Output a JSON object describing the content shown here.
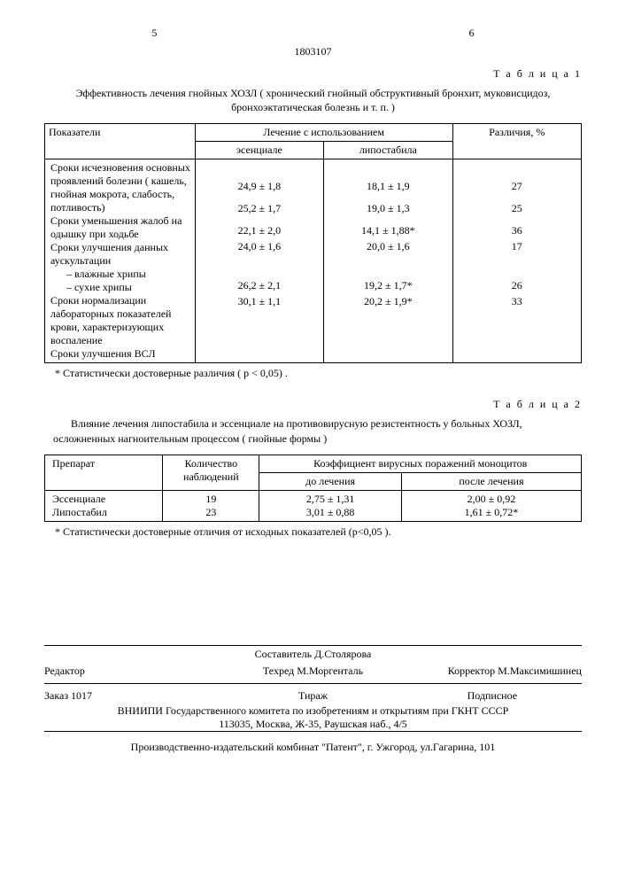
{
  "header": {
    "page_left": "5",
    "page_right": "6",
    "doc_number": "1803107"
  },
  "table1": {
    "label": "Т а б л и ц а 1",
    "caption": "Эффективность лечения гнойных ХОЗЛ ( хронический гнойный обструктивный бронхит, муковисцидоз, бронхоэктатическая болезнь и т. п. )",
    "headers": {
      "indicator": "Показатели",
      "group": "Лечение с использованием",
      "col_a": "эсенциале",
      "col_b": "липостабила",
      "diff": "Различия, %"
    },
    "rows": [
      {
        "label": "Сроки исчезновения основных проявлений болезни ( кашель, гнойная мокрота, слабость, потливость)",
        "a": "24,9 ± 1,8",
        "b": "18,1 ± 1,9",
        "diff": "27"
      },
      {
        "label": "Сроки уменьшения жалоб на одышку при ходьбе",
        "a": "25,2 ± 1,7",
        "b": "19,0 ± 1,3",
        "diff": "25"
      },
      {
        "label": "Сроки улучшения данных аускультации",
        "a": "22,1 ± 2,0",
        "b": "14,1 ± 1,88*",
        "diff": "36"
      },
      {
        "label": "– влажные хрипы",
        "a": "24,0 ± 1,6",
        "b": "20,0 ± 1,6",
        "diff": "17",
        "sub": true
      },
      {
        "label": "– сухие хрипы",
        "a": "",
        "b": "",
        "diff": "",
        "sub": true
      },
      {
        "label": "Сроки нормализации лабораторных показателей крови, характеризующих воспаление",
        "a": "26,2 ± 2,1",
        "b": "19,2 ± 1,7*",
        "diff": "26"
      },
      {
        "label": "Сроки улучшения ВСЛ",
        "a": "30,1 ± 1,1",
        "b": "20,2 ± 1,9*",
        "diff": "33"
      }
    ],
    "footnote": "* Статистически достоверные различия ( p < 0,05) ."
  },
  "table2": {
    "label": "Т а б л и ц а 2",
    "caption": "Влияние лечения липостабила и эссенциале на противовирусную резистентность у больных ХОЗЛ, осложненных нагноительным процессом ( гнойные формы )",
    "headers": {
      "prep": "Препарат",
      "qty": "Количество наблюдений",
      "coef": "Коэффициент вирусных поражений моноцитов",
      "before": "до лечения",
      "after": "после лечения"
    },
    "rows": [
      {
        "prep": "Эссенциале",
        "qty": "19",
        "before": "2,75 ± 1,31",
        "after": "2,00 ± 0,92"
      },
      {
        "prep": "Липостабил",
        "qty": "23",
        "before": "3,01 ± 0,88",
        "after": "1,61 ± 0,72*"
      }
    ],
    "footnote": "* Статистически достоверные отличия от исходных показателей (p<0,05 )."
  },
  "credits": {
    "compiler": "Составитель Д.Столярова",
    "editor_label": "Редактор",
    "techred": "Техред М.Моргенталь",
    "corrector": "Корректор М.Максимишинец",
    "order": "Заказ 1017",
    "tirazh": "Тираж",
    "subscript": "Подписное",
    "org1": "ВНИИПИ Государственного комитета по изобретениям и открытиям при ГКНТ СССР",
    "addr1": "113035, Москва, Ж-35, Раушская наб., 4/5",
    "publisher": "Производственно-издательский комбинат \"Патент\", г. Ужгород, ул.Гагарина, 101"
  }
}
